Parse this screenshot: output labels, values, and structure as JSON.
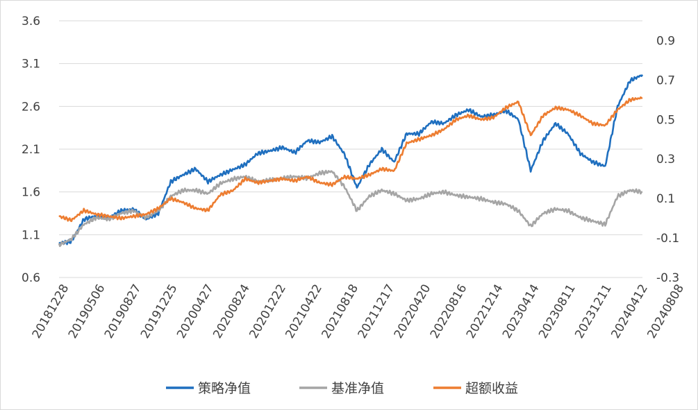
{
  "chart_data": {
    "type": "line",
    "title": "",
    "xlabel": "",
    "ylabel": "",
    "x_tick_labels": [
      "20181228",
      "20190506",
      "20190827",
      "20191225",
      "20200427",
      "20200824",
      "20201222",
      "20210422",
      "20210818",
      "20211217",
      "20220420",
      "20220816",
      "20221214",
      "20230414",
      "20230811",
      "20231211",
      "20240412",
      "20240808"
    ],
    "left_axis": {
      "ylim": [
        0.6,
        3.6
      ],
      "ticks": [
        "0.6",
        "1.1",
        "1.6",
        "2.1",
        "2.6",
        "3.1",
        "3.6"
      ]
    },
    "right_axis": {
      "ylim": [
        -0.3,
        1.0
      ],
      "ticks": [
        "-0.3",
        "-0.1",
        "0.1",
        "0.3",
        "0.5",
        "0.7",
        "0.9"
      ]
    },
    "grid": "horizontal",
    "legend_position": "bottom",
    "series": [
      {
        "name": "策略净值",
        "axis": "left",
        "color": "#1f6fbf",
        "values": [
          1.0,
          1.02,
          1.28,
          1.32,
          1.3,
          1.38,
          1.4,
          1.28,
          1.35,
          1.72,
          1.8,
          1.87,
          1.72,
          1.8,
          1.86,
          1.92,
          2.05,
          2.08,
          2.12,
          2.06,
          2.2,
          2.18,
          2.25,
          2.04,
          1.65,
          1.92,
          2.1,
          1.95,
          2.28,
          2.28,
          2.42,
          2.4,
          2.5,
          2.56,
          2.48,
          2.5,
          2.55,
          2.45,
          1.85,
          2.2,
          2.4,
          2.28,
          2.05,
          1.95,
          1.9,
          2.6,
          2.9,
          2.97
        ]
      },
      {
        "name": "基准净值",
        "axis": "left",
        "color": "#a5a5a5",
        "values": [
          0.98,
          1.05,
          1.22,
          1.3,
          1.28,
          1.35,
          1.38,
          1.3,
          1.38,
          1.55,
          1.62,
          1.62,
          1.58,
          1.7,
          1.75,
          1.78,
          1.72,
          1.74,
          1.76,
          1.78,
          1.76,
          1.82,
          1.84,
          1.66,
          1.38,
          1.55,
          1.62,
          1.58,
          1.5,
          1.52,
          1.58,
          1.6,
          1.56,
          1.54,
          1.52,
          1.48,
          1.46,
          1.38,
          1.2,
          1.35,
          1.4,
          1.38,
          1.3,
          1.26,
          1.22,
          1.55,
          1.62,
          1.6
        ]
      },
      {
        "name": "超额收益",
        "axis": "right",
        "color": "#ed7d31",
        "values": [
          0.01,
          -0.01,
          0.04,
          0.02,
          0.01,
          0.0,
          0.01,
          0.02,
          0.05,
          0.1,
          0.08,
          0.05,
          0.04,
          0.12,
          0.14,
          0.2,
          0.18,
          0.19,
          0.2,
          0.19,
          0.21,
          0.18,
          0.17,
          0.21,
          0.2,
          0.22,
          0.25,
          0.24,
          0.38,
          0.4,
          0.42,
          0.45,
          0.5,
          0.52,
          0.5,
          0.51,
          0.56,
          0.59,
          0.42,
          0.52,
          0.56,
          0.55,
          0.52,
          0.48,
          0.47,
          0.55,
          0.6,
          0.61
        ]
      }
    ]
  }
}
